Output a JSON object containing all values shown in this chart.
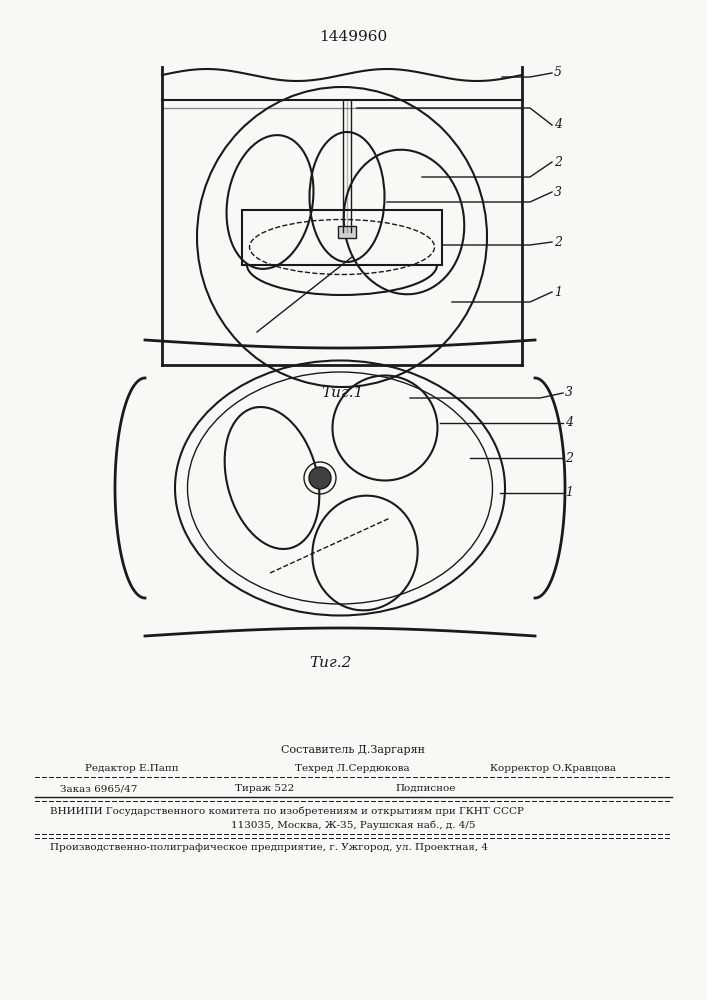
{
  "patent_number": "1449960",
  "fig1_caption": "Τиг.1",
  "fig2_caption": "Τиг.2",
  "footer_line1": "Составитель Д.Заргарян",
  "footer_line2a": "Редактор Е.Папп",
  "footer_line2b": "Техред Л.Сердюкова",
  "footer_line2c": "Корректор О.Кравцова",
  "footer_line3a": "Заказ 6965/47",
  "footer_line3b": "Тираж 522",
  "footer_line3c": "Подписное",
  "footer_line4": "ВНИИПИ Государственного комитета по изобретениям и открытиям при ГКНТ СССР",
  "footer_line5": "113035, Москва, Ж-35, Раушская наб., д. 4/5",
  "footer_line6": "Производственно-полиграфическое предприятие, г. Ужгород, ул. Проектная, 4",
  "bg_color": "#f8f8f4",
  "line_color": "#1a1a1a"
}
